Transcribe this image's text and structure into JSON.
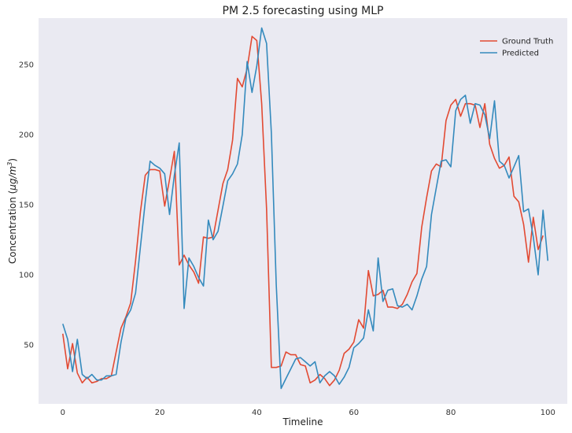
{
  "chart_data": {
    "type": "line",
    "title": "PM 2.5 forecasting using MLP",
    "xlabel": "Timeline",
    "ylabel_prefix": "Concentration (",
    "ylabel_unit_main": "μg/m",
    "ylabel_unit_sup": "3",
    "ylabel_suffix": ")",
    "xlim": [
      -5,
      104
    ],
    "ylim": [
      8,
      283
    ],
    "xticks": [
      0,
      20,
      40,
      60,
      80,
      100
    ],
    "yticks": [
      50,
      100,
      150,
      200,
      250
    ],
    "grid": false,
    "legend_position": "top-right",
    "background_color": "#eaeaf2",
    "series": [
      {
        "name": "Ground Truth",
        "color": "#e24a33",
        "values": [
          58,
          33,
          51,
          30,
          23,
          27,
          23,
          24,
          26,
          26,
          28,
          45,
          62,
          70,
          80,
          110,
          145,
          171,
          175,
          175,
          174,
          149,
          168,
          188,
          107,
          114,
          107,
          102,
          94,
          127,
          126,
          127,
          146,
          165,
          175,
          196,
          240,
          234,
          247,
          270,
          267,
          222,
          147,
          34,
          34,
          35,
          45,
          43,
          43,
          36,
          35,
          23,
          25,
          29,
          26,
          21,
          25,
          32,
          44,
          47,
          52,
          68,
          62,
          103,
          85,
          86,
          89,
          77,
          77,
          76,
          79,
          86,
          95,
          101,
          134,
          155,
          174,
          179,
          177,
          210,
          221,
          225,
          213,
          222,
          222,
          221,
          205,
          222,
          193,
          183,
          176,
          178,
          184,
          156,
          152,
          136,
          109,
          141,
          118,
          128
        ]
      },
      {
        "name": "Predicted",
        "color": "#348abd",
        "values": [
          65,
          54,
          31,
          54,
          29,
          26,
          29,
          25,
          25,
          28,
          28,
          29,
          52,
          69,
          75,
          87,
          120,
          152,
          181,
          178,
          176,
          172,
          143,
          171,
          194,
          76,
          112,
          106,
          98,
          92,
          139,
          125,
          131,
          149,
          167,
          172,
          179,
          200,
          252,
          230,
          249,
          276,
          265,
          201,
          93,
          19,
          26,
          33,
          40,
          41,
          38,
          35,
          38,
          23,
          28,
          31,
          28,
          22,
          27,
          34,
          48,
          51,
          55,
          75,
          60,
          112,
          81,
          89,
          90,
          78,
          77,
          79,
          75,
          85,
          97,
          106,
          143,
          162,
          181,
          182,
          177,
          217,
          225,
          228,
          208,
          222,
          221,
          214,
          197,
          224,
          181,
          178,
          169,
          177,
          185,
          145,
          147,
          127,
          100,
          146,
          110
        ]
      }
    ]
  }
}
